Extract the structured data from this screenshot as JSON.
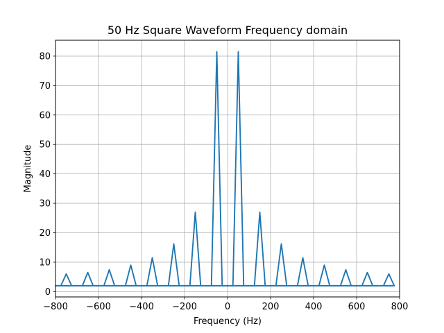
{
  "chart_data": {
    "type": "line",
    "title": "50 Hz Square Waveform Frequency domain",
    "xlabel": "Frequency (Hz)",
    "ylabel": "Magnitude",
    "xlim": [
      -800,
      800
    ],
    "ylim": [
      -1.8,
      85.4
    ],
    "grid": true,
    "x_ticks": [
      -800,
      -600,
      -400,
      -200,
      0,
      200,
      400,
      600,
      800
    ],
    "x_tick_labels": [
      "−800",
      "−600",
      "−400",
      "−200",
      "0",
      "200",
      "400",
      "600",
      "800"
    ],
    "y_ticks": [
      0,
      10,
      20,
      30,
      40,
      50,
      60,
      70,
      80
    ],
    "y_tick_labels": [
      "0",
      "10",
      "20",
      "30",
      "40",
      "50",
      "60",
      "70",
      "80"
    ],
    "series": [
      {
        "color": "#1f77b4",
        "x": [
          0,
          25,
          50,
          75,
          100,
          125,
          150,
          175,
          200,
          225,
          250,
          275,
          300,
          325,
          350,
          375,
          400,
          425,
          450,
          475,
          500,
          525,
          550,
          575,
          600,
          625,
          650,
          675,
          700,
          725,
          750,
          775,
          -800,
          -775,
          -750,
          -725,
          -700,
          -675,
          -650,
          -625,
          -600,
          -575,
          -550,
          -525,
          -500,
          -475,
          -450,
          -425,
          -400,
          -375,
          -350,
          -325,
          -300,
          -275,
          -250,
          -225,
          -200,
          -175,
          -150,
          -125,
          -100,
          -75,
          -50,
          -25,
          0
        ],
        "y": [
          2,
          2,
          81.5,
          2,
          2,
          2,
          27,
          2,
          2,
          2,
          16.2,
          2,
          2,
          2,
          11.5,
          2,
          2,
          2,
          9,
          2,
          2,
          2,
          7.4,
          2,
          2,
          2,
          6.5,
          2,
          2,
          2,
          6,
          2,
          2,
          2,
          6,
          2,
          2,
          2,
          6.5,
          2,
          2,
          2,
          7.4,
          2,
          2,
          2,
          9,
          2,
          2,
          2,
          11.5,
          2,
          2,
          2,
          16.2,
          2,
          2,
          2,
          27,
          2,
          2,
          2,
          81.5,
          2,
          2
        ]
      }
    ]
  }
}
